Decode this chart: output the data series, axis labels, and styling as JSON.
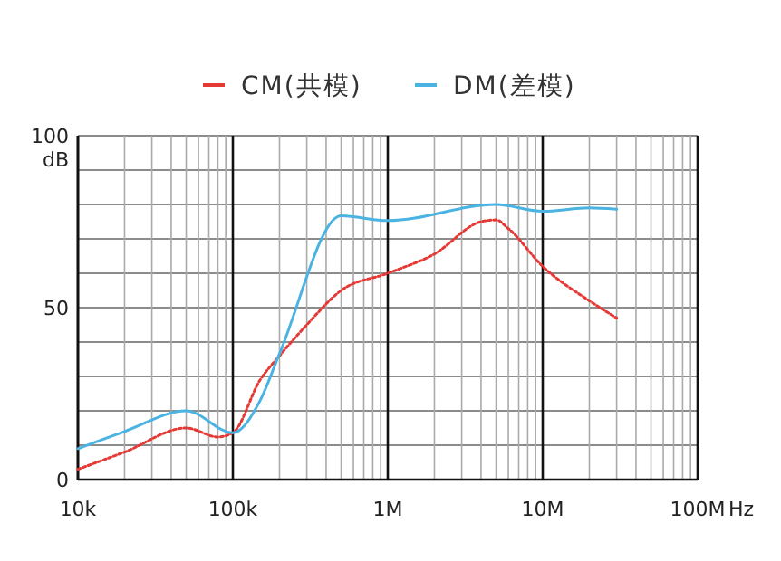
{
  "chart_data": {
    "type": "line",
    "log": "x",
    "grid": true,
    "legend": "top",
    "ylabel": "dB",
    "xlim": [
      10000,
      100000000
    ],
    "ylim": [
      0,
      100
    ],
    "xticks": [
      {
        "value": 10000,
        "label": "10k"
      },
      {
        "value": 20000,
        "label": null
      },
      {
        "value": 30000,
        "label": null
      },
      {
        "value": 40000,
        "label": null
      },
      {
        "value": 50000,
        "label": null
      },
      {
        "value": 60000,
        "label": null
      },
      {
        "value": 70000,
        "label": null
      },
      {
        "value": 80000,
        "label": null
      },
      {
        "value": 90000,
        "label": null
      },
      {
        "value": 100000,
        "label": "100k"
      },
      {
        "value": 200000,
        "label": null
      },
      {
        "value": 300000,
        "label": null
      },
      {
        "value": 400000,
        "label": null
      },
      {
        "value": 500000,
        "label": null
      },
      {
        "value": 600000,
        "label": null
      },
      {
        "value": 700000,
        "label": null
      },
      {
        "value": 800000,
        "label": null
      },
      {
        "value": 900000,
        "label": null
      },
      {
        "value": 1000000,
        "label": "1M"
      },
      {
        "value": 2000000,
        "label": null
      },
      {
        "value": 3000000,
        "label": null
      },
      {
        "value": 4000000,
        "label": null
      },
      {
        "value": 5000000,
        "label": null
      },
      {
        "value": 6000000,
        "label": null
      },
      {
        "value": 7000000,
        "label": null
      },
      {
        "value": 8000000,
        "label": null
      },
      {
        "value": 9000000,
        "label": null
      },
      {
        "value": 10000000,
        "label": "10M"
      },
      {
        "value": 20000000,
        "label": null
      },
      {
        "value": 30000000,
        "label": null
      },
      {
        "value": 40000000,
        "label": null
      },
      {
        "value": 50000000,
        "label": null
      },
      {
        "value": 60000000,
        "label": null
      },
      {
        "value": 70000000,
        "label": null
      },
      {
        "value": 80000000,
        "label": null
      },
      {
        "value": 90000000,
        "label": null
      },
      {
        "value": 100000000,
        "label": "100M"
      }
    ],
    "xlabel": "Hz",
    "yticks": [
      0,
      {
        "value": 10,
        "label": null
      },
      {
        "value": 20,
        "label": null
      },
      {
        "value": 30,
        "label": null
      },
      {
        "value": 40,
        "label": null
      },
      50,
      {
        "value": 60,
        "label": null
      },
      {
        "value": 70,
        "label": null
      },
      {
        "value": 80,
        "label": null
      },
      {
        "value": 90,
        "label": null
      },
      100
    ],
    "series": [
      {
        "name": "CM(共模)",
        "color": "#e53935",
        "line_style": "dotted",
        "x": [
          10000,
          20000,
          50000,
          80000,
          100000,
          150000,
          200000,
          300000,
          500000,
          1000000,
          2000000,
          4000000,
          5000000,
          6000000,
          10000000,
          20000000,
          30000000
        ],
        "values": [
          3,
          8,
          15,
          12.4,
          13.6,
          29,
          36,
          45,
          55,
          60,
          65.6,
          75,
          75.5,
          73,
          62,
          52,
          47
        ]
      },
      {
        "name": "DM(差模)",
        "color": "#4ab3e2",
        "line_style": "solid",
        "x": [
          10000,
          20000,
          50000,
          100000,
          150000,
          200000,
          500000,
          1000000,
          5000000,
          10000000,
          20000000,
          30000000
        ],
        "values": [
          9,
          14,
          20,
          13.6,
          23,
          36.6,
          76.7,
          75.3,
          80,
          78,
          79,
          78.6
        ]
      }
    ]
  }
}
